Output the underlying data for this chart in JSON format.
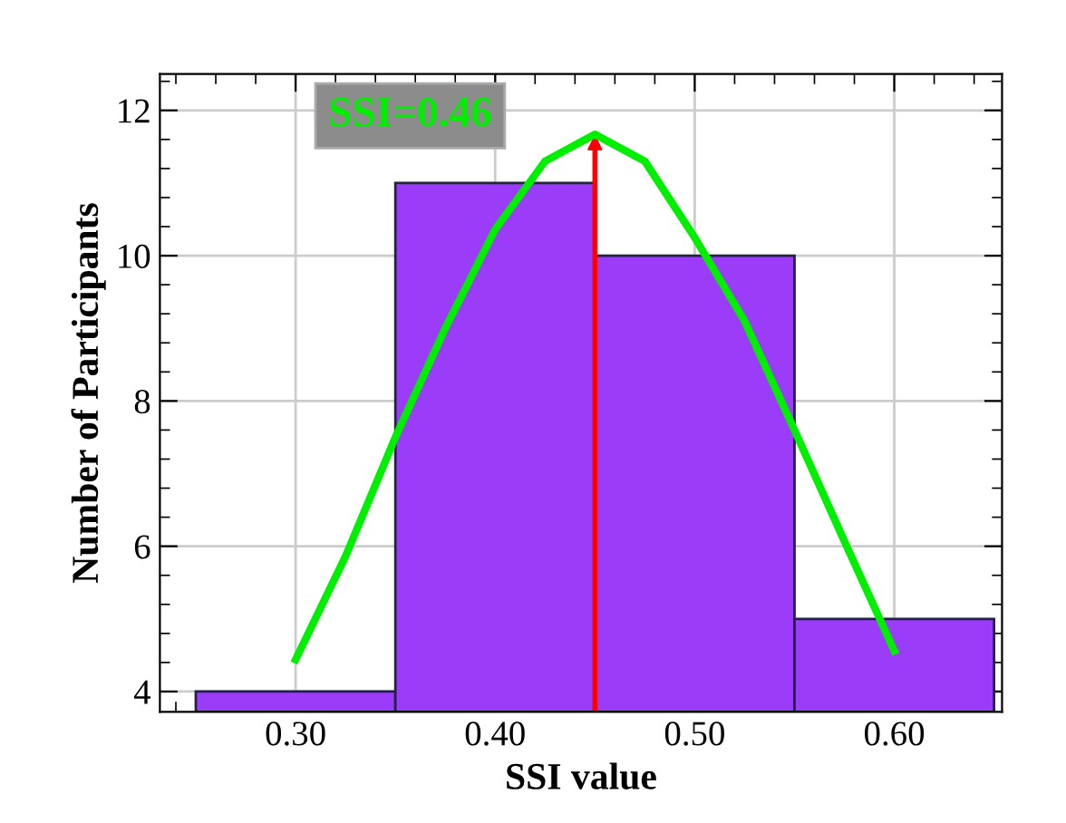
{
  "chart_data": {
    "type": "histogram",
    "xlabel": "SSI value",
    "ylabel": "Number of Participants",
    "bins": [
      0.25,
      0.35,
      0.45,
      0.55,
      0.65
    ],
    "values": [
      4,
      11,
      10,
      5
    ],
    "color": "#9a3cf8",
    "series": [
      {
        "type": "line",
        "color": "#00ee00",
        "x": [
          0.3,
          0.325,
          0.35,
          0.375,
          0.4,
          0.425,
          0.45,
          0.475,
          0.5,
          0.525,
          0.55,
          0.575,
          0.6
        ],
        "values": [
          4.44,
          5.86,
          7.5,
          9.0,
          10.36,
          11.3,
          11.67,
          11.3,
          10.25,
          9.1,
          7.6,
          6.07,
          4.56
        ]
      }
    ],
    "annotations": [
      "SSI=0.46"
    ],
    "ref_lines": [
      {
        "axis": "x",
        "value": 0.45,
        "color": "#ff0000"
      }
    ],
    "xlim": [
      0.232,
      0.654
    ],
    "ylim": [
      3.72,
      12.5
    ],
    "xticks": [
      {
        "value": 0.3,
        "label": "0.30"
      },
      {
        "value": 0.4,
        "label": "0.40"
      },
      {
        "value": 0.5,
        "label": "0.50"
      },
      {
        "value": 0.6,
        "label": "0.60"
      }
    ],
    "yticks": [
      4,
      6,
      8,
      10,
      12
    ],
    "grid": true
  }
}
